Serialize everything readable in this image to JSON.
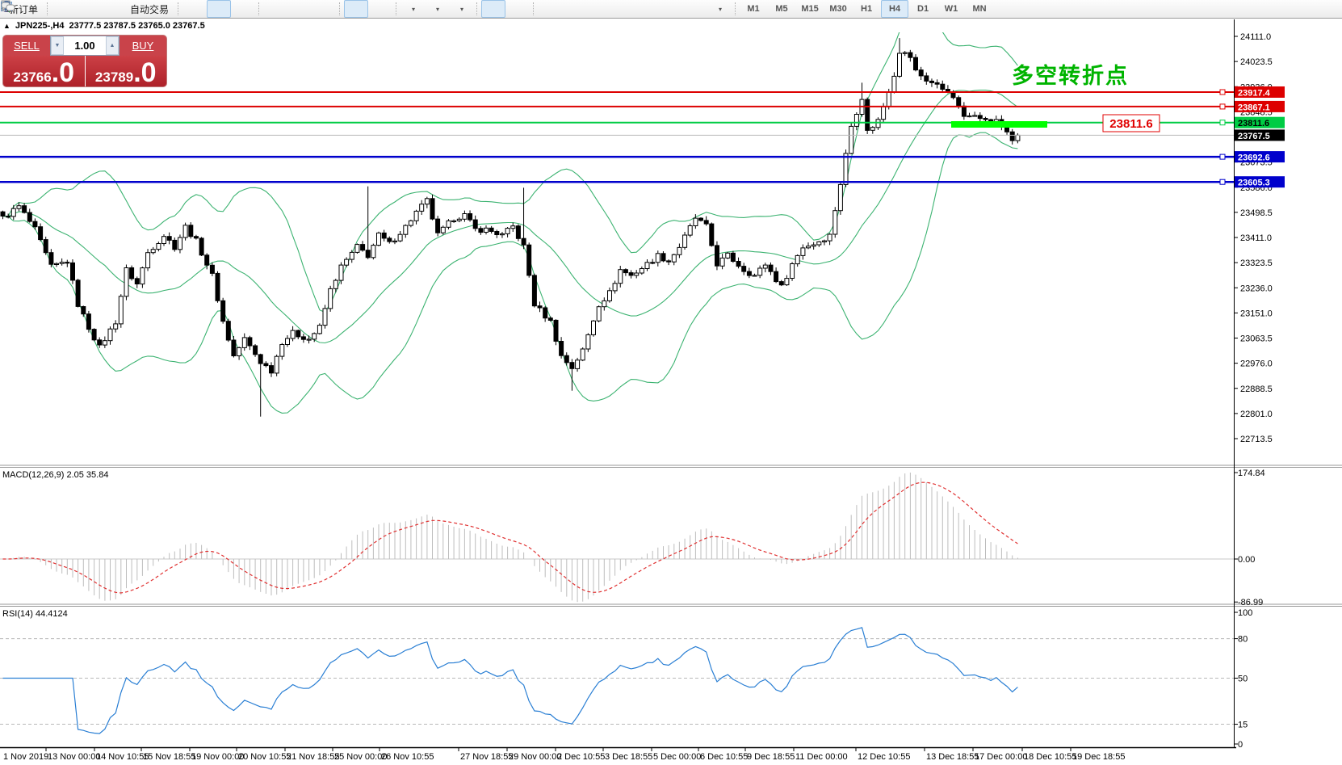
{
  "colors": {
    "accent_red": "#dd0000",
    "accent_green": "#00cc44",
    "accent_blue": "#0000cc",
    "highlight": "#00ff00",
    "annotation_green": "#00b400",
    "callout_red": "#e00000",
    "band_green": "#3cb371",
    "rsi_blue": "#2a7fd4",
    "macd_hist": "#bdbdbd",
    "macd_signal": "#e03030",
    "panel_red": "#c9434a",
    "current_price_bg": "#000000"
  },
  "icons": {
    "panel_toggle": "▲",
    "volume_down": "▼",
    "volume_up": "▲",
    "dropdown": "▾"
  },
  "toolbar": {
    "new_order_label": "新订单",
    "auto_trading_label": "自动交易",
    "timeframes": [
      "M1",
      "M5",
      "M15",
      "M30",
      "H1",
      "H4",
      "D1",
      "W1",
      "MN"
    ],
    "active_timeframe": "H4"
  },
  "caption": {
    "symbol": "JPN225-,H4",
    "ohlc": "23777.5 23787.5 23765.0 23767.5"
  },
  "trade_panel": {
    "sell_label": "SELL",
    "buy_label": "BUY",
    "volume": "1.00",
    "sell_price_main": "23766",
    "sell_price_pips": ".0",
    "buy_price_main": "23789",
    "buy_price_pips": ".0"
  },
  "annotations": {
    "pivot_text": "多空转折点",
    "price_box": "23811.6"
  },
  "indicator_labels": {
    "macd": "MACD(12,26,9) 2.05 35.84",
    "rsi": "RSI(14) 44.4124"
  },
  "axis": {
    "price_ticks": [
      "24111.0",
      "24023.5",
      "23936.0",
      "23848.5",
      "23761.0",
      "23673.5",
      "23586.0",
      "23498.5",
      "23411.0",
      "23323.5",
      "23236.0",
      "23151.0",
      "23063.5",
      "22976.0",
      "22888.5",
      "22801.0",
      "22713.5"
    ],
    "macd_ticks": [
      {
        "label": "174.84",
        "value": 174.84
      },
      {
        "label": "0.00",
        "value": 0
      },
      {
        "label": "-86.99",
        "value": -86.99
      }
    ],
    "rsi_ticks": [
      {
        "label": "100",
        "value": 100
      },
      {
        "label": "80",
        "value": 80,
        "dashed": true
      },
      {
        "label": "50",
        "value": 50,
        "dashed": true
      },
      {
        "label": "15",
        "value": 15,
        "dashed": true
      },
      {
        "label": "0",
        "value": 0
      }
    ]
  },
  "price_tags": [
    {
      "label": "23917.4",
      "price": 23917.4,
      "bg": "#dd0000",
      "fg": "#ffffff",
      "line": "#dd0000",
      "width": 2,
      "handle": true
    },
    {
      "label": "23867.1",
      "price": 23867.1,
      "bg": "#dd0000",
      "fg": "#ffffff",
      "line": "#dd0000",
      "width": 2,
      "handle": true
    },
    {
      "label": "23811.6",
      "price": 23811.6,
      "bg": "#00cc44",
      "fg": "#000000",
      "line": "#00cc44",
      "width": 2,
      "handle": true
    },
    {
      "label": "23767.5",
      "price": 23767.5,
      "bg": "#000000",
      "fg": "#ffffff",
      "line": "#b8b8b8",
      "width": 1,
      "handle": false
    },
    {
      "label": "23692.6",
      "price": 23692.6,
      "bg": "#0000cc",
      "fg": "#ffffff",
      "line": "#0000cc",
      "width": 2.5,
      "handle": true
    },
    {
      "label": "23605.3",
      "price": 23605.3,
      "bg": "#0000cc",
      "fg": "#ffffff",
      "line": "#0000cc",
      "width": 2.5,
      "handle": true
    }
  ],
  "time_axis": [
    [
      "1 Nov 2019",
      2
    ],
    [
      "13 Nov 00:00",
      57
    ],
    [
      "14 Nov 10:55",
      117
    ],
    [
      "15 Nov 18:55",
      175
    ],
    [
      "19 Nov 00:00",
      235
    ],
    [
      "20 Nov 10:55",
      293
    ],
    [
      "21 Nov 18:55",
      353
    ],
    [
      "25 Nov 00:00",
      412
    ],
    [
      "26 Nov 10:55",
      470
    ],
    [
      "27 Nov 18:55",
      568
    ],
    [
      "29 Nov 00:00",
      628
    ],
    [
      "2 Dec 10:55",
      688
    ],
    [
      "3 Dec 18:55",
      747
    ],
    [
      "5 Dec 00:00",
      807
    ],
    [
      "6 Dec 10:55",
      865
    ],
    [
      "9 Dec 18:55",
      923
    ],
    [
      "11 Dec 00:00",
      983
    ],
    [
      "12 Dec 10:55",
      1060
    ],
    [
      "13 Dec 18:55",
      1145
    ],
    [
      "17 Dec 00:00",
      1205
    ],
    [
      "18 Dec 10:55",
      1266
    ],
    [
      "19 Dec 18:55",
      1326
    ]
  ],
  "chart_data": {
    "type": "candlestick",
    "symbol": "JPN225-",
    "timeframe": "H4",
    "title": "JPN225-,H4",
    "ohlc_current": {
      "open": 23777.5,
      "high": 23787.5,
      "low": 23765.0,
      "close": 23767.5
    },
    "bid": 23766.0,
    "ask": 23789.0,
    "price_range": [
      22713.5,
      24111.0
    ],
    "bars_total": 190,
    "close_waypoints": [
      [
        0,
        23480
      ],
      [
        3,
        23520
      ],
      [
        6,
        23440
      ],
      [
        9,
        23310
      ],
      [
        12,
        23330
      ],
      [
        14,
        23180
      ],
      [
        16,
        23100
      ],
      [
        18,
        23030
      ],
      [
        21,
        23120
      ],
      [
        23,
        23300
      ],
      [
        25,
        23250
      ],
      [
        27,
        23360
      ],
      [
        30,
        23420
      ],
      [
        32,
        23380
      ],
      [
        34,
        23450
      ],
      [
        36,
        23400
      ],
      [
        39,
        23280
      ],
      [
        41,
        23120
      ],
      [
        43,
        23000
      ],
      [
        45,
        23060
      ],
      [
        48,
        22980
      ],
      [
        50,
        22950
      ],
      [
        52,
        23050
      ],
      [
        54,
        23080
      ],
      [
        57,
        23060
      ],
      [
        59,
        23100
      ],
      [
        61,
        23230
      ],
      [
        63,
        23310
      ],
      [
        66,
        23380
      ],
      [
        68,
        23350
      ],
      [
        70,
        23420
      ],
      [
        72,
        23390
      ],
      [
        75,
        23450
      ],
      [
        77,
        23500
      ],
      [
        79,
        23540
      ],
      [
        81,
        23420
      ],
      [
        84,
        23480
      ],
      [
        86,
        23490
      ],
      [
        88,
        23440
      ],
      [
        90,
        23440
      ],
      [
        93,
        23420
      ],
      [
        95,
        23450
      ],
      [
        97,
        23380
      ],
      [
        99,
        23180
      ],
      [
        102,
        23120
      ],
      [
        104,
        23000
      ],
      [
        106,
        22960
      ],
      [
        108,
        23020
      ],
      [
        111,
        23180
      ],
      [
        113,
        23220
      ],
      [
        115,
        23300
      ],
      [
        117,
        23280
      ],
      [
        120,
        23320
      ],
      [
        122,
        23350
      ],
      [
        124,
        23330
      ],
      [
        126,
        23380
      ],
      [
        129,
        23480
      ],
      [
        131,
        23450
      ],
      [
        133,
        23320
      ],
      [
        135,
        23350
      ],
      [
        138,
        23300
      ],
      [
        140,
        23280
      ],
      [
        142,
        23320
      ],
      [
        145,
        23240
      ],
      [
        147,
        23320
      ],
      [
        149,
        23380
      ],
      [
        151,
        23390
      ],
      [
        154,
        23420
      ],
      [
        156,
        23600
      ],
      [
        158,
        23800
      ],
      [
        160,
        23900
      ],
      [
        161,
        23780
      ],
      [
        163,
        23820
      ],
      [
        164,
        23870
      ],
      [
        166,
        23980
      ],
      [
        167,
        24060
      ],
      [
        169,
        24040
      ],
      [
        170,
        23990
      ],
      [
        172,
        23960
      ],
      [
        173,
        23950
      ],
      [
        175,
        23930
      ],
      [
        176,
        23920
      ],
      [
        178,
        23870
      ],
      [
        179,
        23830
      ],
      [
        181,
        23840
      ],
      [
        182,
        23830
      ],
      [
        184,
        23810
      ],
      [
        185,
        23820
      ],
      [
        187,
        23780
      ],
      [
        188,
        23750
      ],
      [
        189,
        23767.5
      ]
    ],
    "wick_events": [
      {
        "bar": 48,
        "low": 22790
      },
      {
        "bar": 68,
        "high": 23590
      },
      {
        "bar": 97,
        "high": 23585
      },
      {
        "bar": 106,
        "low": 22880
      },
      {
        "bar": 160,
        "high": 23950
      },
      {
        "bar": 167,
        "high": 24105
      }
    ],
    "horizontal_levels": [
      23917.4,
      23867.1,
      23811.6,
      23692.6,
      23605.3
    ],
    "current_price": 23767.5,
    "indicators": [
      {
        "name": "Bollinger Bands",
        "period": 20,
        "deviation": 2
      },
      {
        "name": "MACD",
        "fast": 12,
        "slow": 26,
        "signal_period": 9,
        "current": [
          2.05,
          35.84
        ],
        "range": [
          -86.99,
          174.84
        ]
      },
      {
        "name": "RSI",
        "period": 14,
        "current": 44.4124,
        "levels": [
          80,
          50,
          15
        ],
        "range": [
          0,
          100
        ]
      }
    ]
  }
}
